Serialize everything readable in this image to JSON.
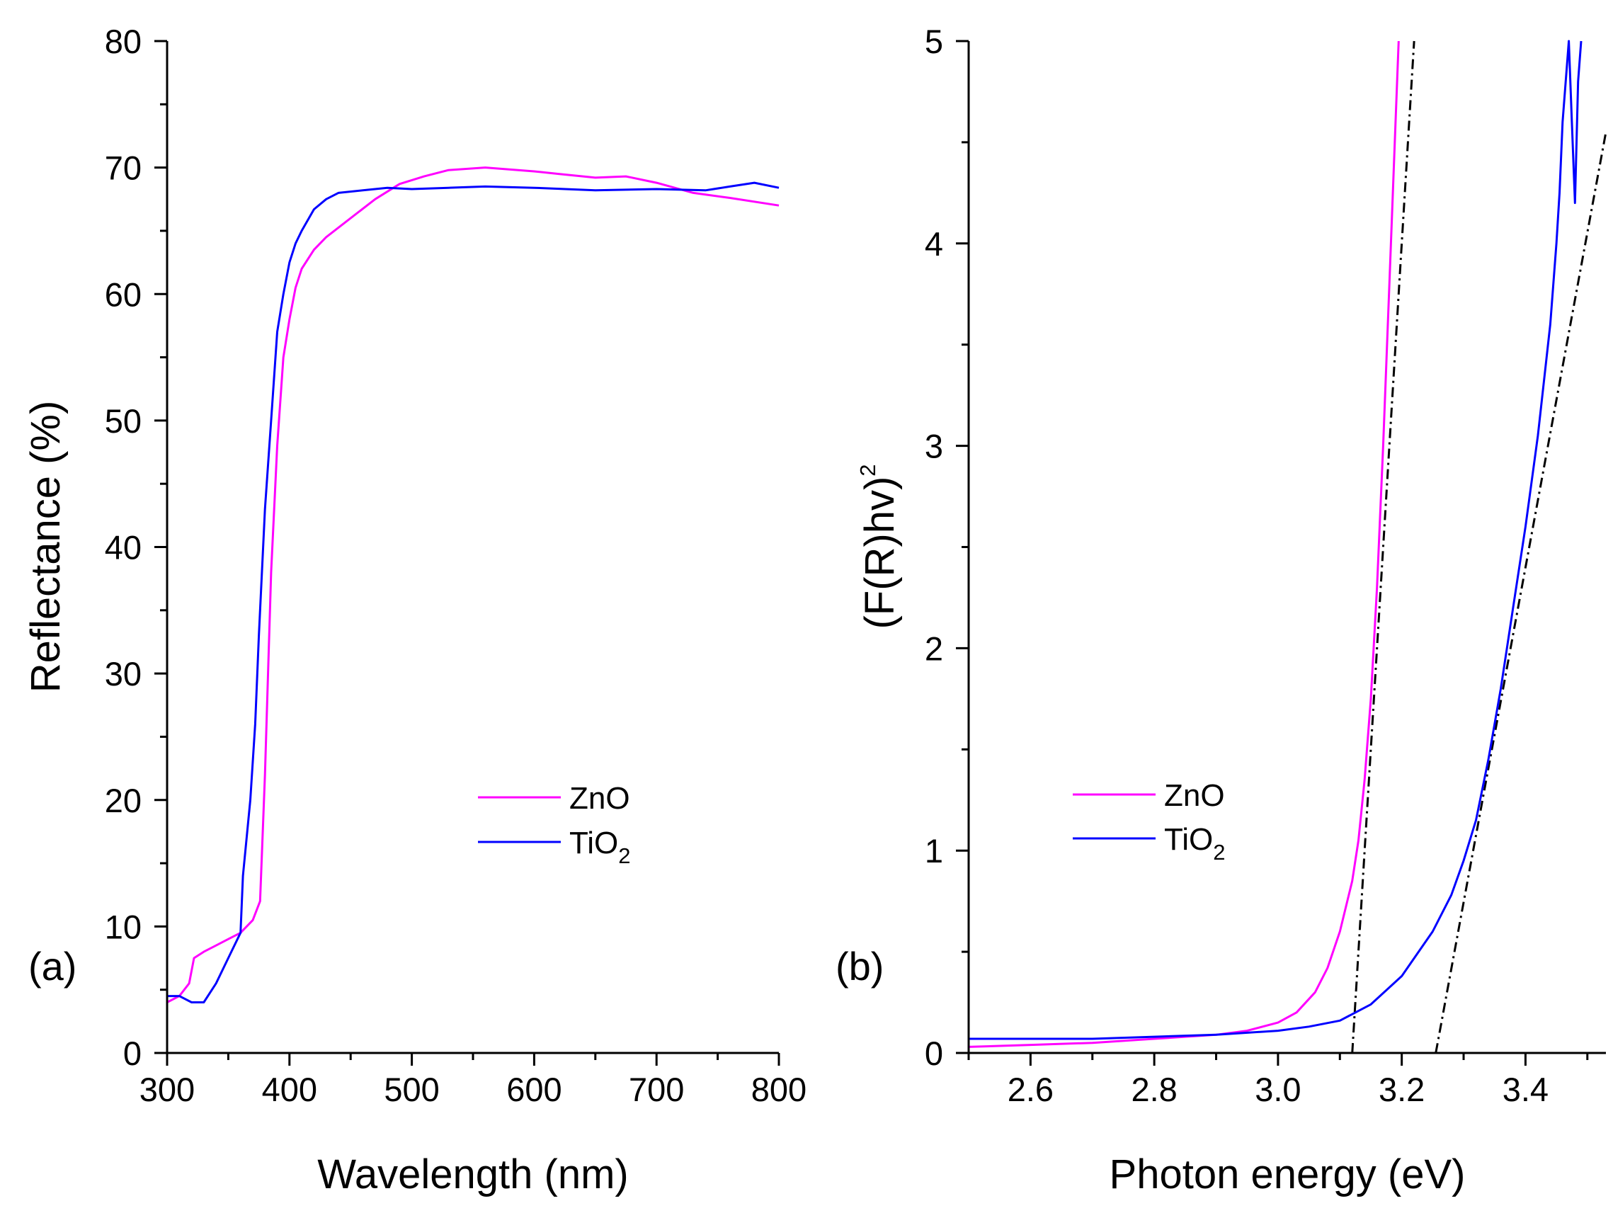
{
  "chart_data": [
    {
      "id": "panel-a",
      "type": "line",
      "panel_label": "(a)",
      "xlabel": "Wavelength (nm)",
      "ylabel": "Reflectance (%)",
      "xlim": [
        300,
        800
      ],
      "ylim": [
        0,
        80
      ],
      "xticks": [
        300,
        400,
        500,
        600,
        700,
        800
      ],
      "yticks": [
        0,
        10,
        20,
        30,
        40,
        50,
        60,
        70,
        80
      ],
      "xticks_minor": [
        350,
        450,
        550,
        650,
        750
      ],
      "yticks_minor": [
        5,
        15,
        25,
        35,
        45,
        55,
        65,
        75
      ],
      "legend_position": "middle-right",
      "series": [
        {
          "name": "ZnO",
          "color": "#ff00ff",
          "x": [
            300,
            310,
            318,
            322,
            330,
            340,
            350,
            360,
            370,
            376,
            380,
            385,
            390,
            395,
            400,
            405,
            410,
            420,
            430,
            450,
            470,
            490,
            510,
            530,
            560,
            600,
            620,
            650,
            675,
            700,
            730,
            760,
            800
          ],
          "y": [
            4,
            4.5,
            5.5,
            7.5,
            8,
            8.5,
            9,
            9.5,
            10.5,
            12,
            22,
            38,
            48,
            55,
            58,
            60.5,
            62,
            63.5,
            64.5,
            66,
            67.5,
            68.7,
            69.3,
            69.8,
            70,
            69.7,
            69.5,
            69.2,
            69.3,
            68.8,
            68,
            67.6,
            67
          ]
        },
        {
          "name": "TiO",
          "name_subscript": "2",
          "color": "#0000ff",
          "x": [
            300,
            310,
            320,
            330,
            340,
            350,
            360,
            362,
            368,
            372,
            375,
            380,
            385,
            390,
            395,
            400,
            405,
            410,
            420,
            430,
            440,
            460,
            480,
            500,
            530,
            560,
            600,
            650,
            700,
            740,
            760,
            780,
            800
          ],
          "y": [
            4.5,
            4.5,
            4,
            4,
            5.5,
            7.5,
            9.5,
            14,
            20,
            26,
            33,
            43,
            50,
            57,
            60,
            62.5,
            64,
            65,
            66.7,
            67.5,
            68,
            68.2,
            68.4,
            68.3,
            68.4,
            68.5,
            68.4,
            68.2,
            68.3,
            68.2,
            68.5,
            68.8,
            68.4
          ]
        }
      ]
    },
    {
      "id": "panel-b",
      "type": "line",
      "panel_label": "(b)",
      "xlabel": "Photon energy (eV)",
      "ylabel": "(F(R)hv)",
      "ylabel_superscript": "2",
      "xlim": [
        2.5,
        3.53
      ],
      "ylim": [
        0,
        5
      ],
      "xticks": [
        2.6,
        2.8,
        3.0,
        3.2,
        3.4
      ],
      "yticks": [
        0,
        1,
        2,
        3,
        4,
        5
      ],
      "xticks_minor": [
        2.5,
        2.7,
        2.9,
        3.1,
        3.3,
        3.5
      ],
      "yticks_minor": [
        0.5,
        1.5,
        2.5,
        3.5,
        4.5
      ],
      "legend_position": "middle-left",
      "series": [
        {
          "name": "ZnO",
          "color": "#ff00ff",
          "x": [
            2.5,
            2.6,
            2.7,
            2.8,
            2.9,
            2.95,
            3.0,
            3.03,
            3.06,
            3.08,
            3.1,
            3.12,
            3.13,
            3.14,
            3.15,
            3.16,
            3.17,
            3.18,
            3.19,
            3.195
          ],
          "y": [
            0.03,
            0.04,
            0.05,
            0.07,
            0.09,
            0.11,
            0.15,
            0.2,
            0.3,
            0.42,
            0.6,
            0.85,
            1.05,
            1.35,
            1.75,
            2.3,
            3.0,
            3.8,
            4.6,
            5.0
          ]
        },
        {
          "name": "TiO",
          "name_subscript": "2",
          "color": "#0000ff",
          "x": [
            2.5,
            2.6,
            2.7,
            2.8,
            2.9,
            3.0,
            3.05,
            3.1,
            3.15,
            3.2,
            3.25,
            3.28,
            3.3,
            3.32,
            3.34,
            3.36,
            3.38,
            3.4,
            3.42,
            3.44,
            3.45,
            3.455,
            3.46,
            3.47,
            3.475,
            3.48,
            3.485,
            3.49
          ],
          "y": [
            0.07,
            0.07,
            0.07,
            0.08,
            0.09,
            0.11,
            0.13,
            0.16,
            0.24,
            0.38,
            0.6,
            0.78,
            0.95,
            1.15,
            1.45,
            1.8,
            2.2,
            2.6,
            3.05,
            3.6,
            4.0,
            4.25,
            4.6,
            5.0,
            4.6,
            4.2,
            4.8,
            5.0
          ]
        }
      ],
      "fit_lines": [
        {
          "name": "ZnO band-edge fit",
          "color": "#000000",
          "x": [
            3.12,
            3.22
          ],
          "y": [
            0,
            5
          ]
        },
        {
          "name": "TiO2 band-edge fit",
          "color": "#000000",
          "x": [
            3.255,
            3.53
          ],
          "y": [
            0,
            4.55
          ]
        }
      ]
    }
  ]
}
